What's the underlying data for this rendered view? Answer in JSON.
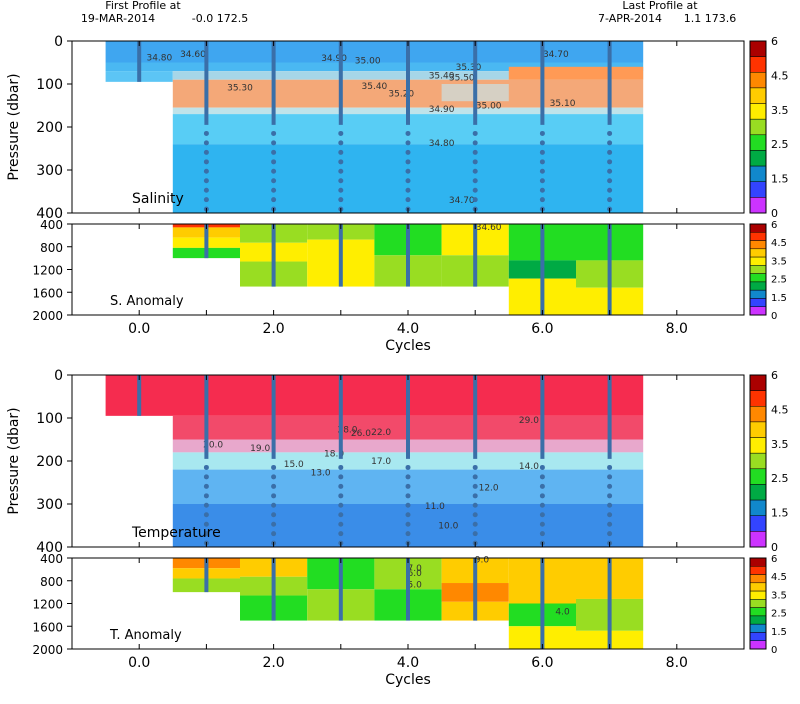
{
  "header": {
    "first_label": "First Profile at",
    "first_date": "19-MAR-2014",
    "first_coords": "-0.0 172.5",
    "last_label": "Last Profile at",
    "last_date": "7-APR-2014",
    "last_coords": "1.1 173.6"
  },
  "colorbar_ticks": [
    "6",
    "4.5",
    "3.5",
    "2.5",
    "1.5",
    "0"
  ],
  "colors": {
    "profile_line": "#3a6fa8",
    "contour": "#333333"
  },
  "chart_data": [
    {
      "type": "heatmap",
      "name_label": "Salinity",
      "ylabel": "Pressure (dbar)",
      "xlim": [
        -1,
        9
      ],
      "ylim": [
        0,
        400
      ],
      "yticks": [
        0,
        100,
        200,
        300,
        400
      ],
      "profiles_x": [
        0,
        1,
        2,
        3,
        4,
        5,
        6,
        7
      ],
      "contour_labels": [
        {
          "text": "34.60",
          "x": 0.8,
          "y": 30
        },
        {
          "text": "34.80",
          "x": 0.3,
          "y": 38
        },
        {
          "text": "34.90",
          "x": 2.9,
          "y": 40
        },
        {
          "text": "35.00",
          "x": 3.4,
          "y": 45
        },
        {
          "text": "34.70",
          "x": 6.2,
          "y": 30
        },
        {
          "text": "35.30",
          "x": 4.9,
          "y": 60
        },
        {
          "text": "35.40",
          "x": 4.5,
          "y": 80
        },
        {
          "text": "35.50",
          "x": 4.8,
          "y": 85
        },
        {
          "text": "35.30",
          "x": 1.5,
          "y": 108
        },
        {
          "text": "35.40",
          "x": 3.5,
          "y": 105
        },
        {
          "text": "35.20",
          "x": 3.9,
          "y": 122
        },
        {
          "text": "35.00",
          "x": 5.2,
          "y": 150
        },
        {
          "text": "35.10",
          "x": 6.3,
          "y": 144
        },
        {
          "text": "34.90",
          "x": 4.5,
          "y": 158
        },
        {
          "text": "34.80",
          "x": 4.5,
          "y": 237
        },
        {
          "text": "34.70",
          "x": 4.8,
          "y": 370
        }
      ]
    },
    {
      "type": "heatmap",
      "name_label": "S. Anomaly",
      "ylim": [
        400,
        2000
      ],
      "yticks": [
        400,
        800,
        1200,
        1600,
        2000
      ],
      "profiles_x": [
        1,
        2,
        3,
        4,
        5,
        6,
        7
      ],
      "contour_labels": [
        {
          "text": "34.60",
          "x": 5.2,
          "y": 450
        }
      ]
    },
    {
      "type": "heatmap",
      "name_label": "Temperature",
      "ylabel": "Pressure (dbar)",
      "xlim": [
        -1,
        9
      ],
      "ylim": [
        0,
        400
      ],
      "yticks": [
        0,
        100,
        200,
        300,
        400
      ],
      "profiles_x": [
        0,
        1,
        2,
        3,
        4,
        5,
        6,
        7
      ],
      "contour_labels": [
        {
          "text": "29.0",
          "x": 5.8,
          "y": 105
        },
        {
          "text": "28.0",
          "x": 3.1,
          "y": 127
        },
        {
          "text": "26.0",
          "x": 3.3,
          "y": 135
        },
        {
          "text": "22.0",
          "x": 3.6,
          "y": 133
        },
        {
          "text": "20.0",
          "x": 1.1,
          "y": 162
        },
        {
          "text": "19.0",
          "x": 1.8,
          "y": 170
        },
        {
          "text": "18.0",
          "x": 2.9,
          "y": 183
        },
        {
          "text": "17.0",
          "x": 3.6,
          "y": 200
        },
        {
          "text": "15.0",
          "x": 2.3,
          "y": 207
        },
        {
          "text": "14.0",
          "x": 5.8,
          "y": 212
        },
        {
          "text": "13.0",
          "x": 2.7,
          "y": 227
        },
        {
          "text": "12.0",
          "x": 5.2,
          "y": 262
        },
        {
          "text": "11.0",
          "x": 4.4,
          "y": 305
        },
        {
          "text": "10.0",
          "x": 4.6,
          "y": 350
        }
      ]
    },
    {
      "type": "heatmap",
      "name_label": "T. Anomaly",
      "xlabel": "Cycles",
      "ylim": [
        400,
        2000
      ],
      "yticks": [
        400,
        800,
        1200,
        1600,
        2000
      ],
      "xticks": [
        "0.0",
        "2.0",
        "4.0",
        "6.0",
        "8.0"
      ],
      "xtick_values": [
        0,
        2,
        4,
        6,
        8
      ],
      "profiles_x": [
        1,
        2,
        3,
        4,
        5,
        6,
        7
      ],
      "contour_labels": [
        {
          "text": "7.0",
          "x": 4.1,
          "y": 580
        },
        {
          "text": "6.0",
          "x": 4.1,
          "y": 660
        },
        {
          "text": "5.0",
          "x": 4.1,
          "y": 870
        },
        {
          "text": "4.0",
          "x": 6.3,
          "y": 1340
        },
        {
          "text": "9.0",
          "x": 5.1,
          "y": 430
        }
      ]
    }
  ],
  "anomaly_scale": {
    "colors": [
      "#cc33ff",
      "#3344ff",
      "#1188cc",
      "#00aa44",
      "#22dd22",
      "#99dd22",
      "#ffee00",
      "#ffcc00",
      "#ff8800",
      "#ff3300",
      "#aa0000"
    ]
  }
}
